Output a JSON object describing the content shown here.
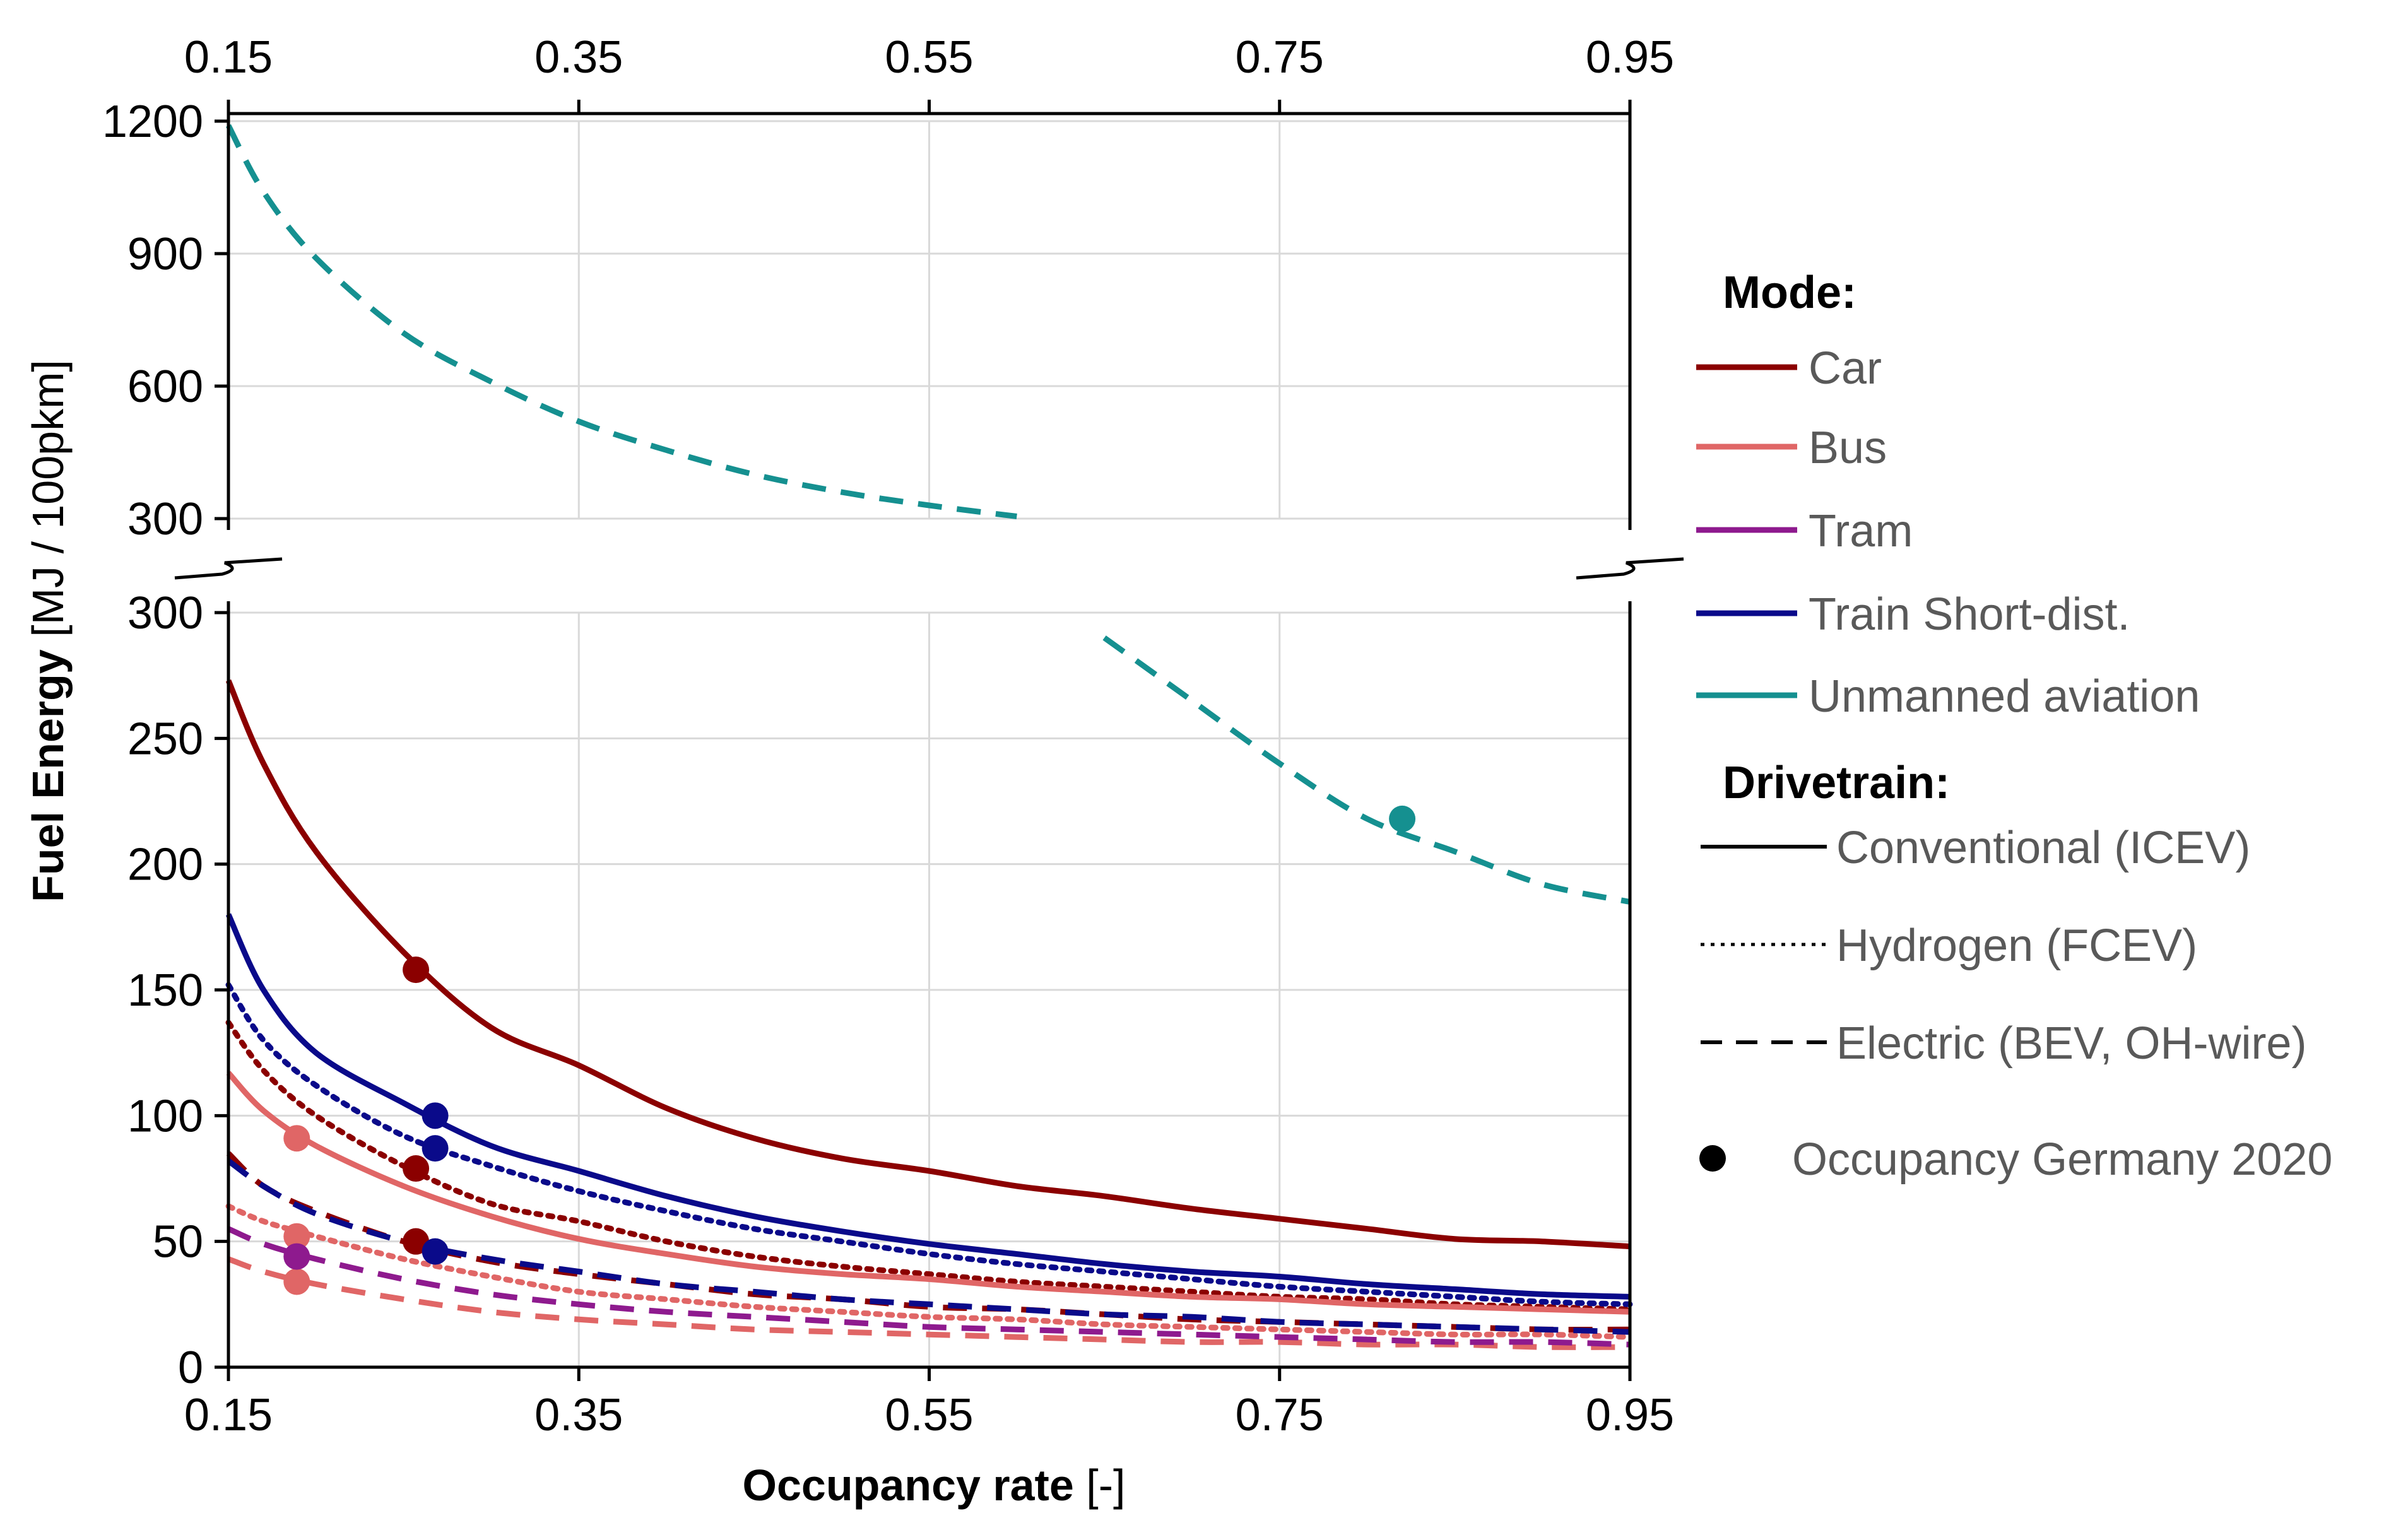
{
  "chart_data": {
    "type": "line",
    "title": "",
    "x_axis": {
      "label_bold": "Occupancy rate",
      "label_rest": " [-]",
      "range": [
        0.15,
        0.95
      ],
      "ticks": [
        "0.15",
        "0.35",
        "0.55",
        "0.75",
        "0.95"
      ],
      "tick_values": [
        0.15,
        0.35,
        0.55,
        0.75,
        0.95
      ]
    },
    "y_axis": {
      "label_bold": "Fuel Energy",
      "label_rest": " [MJ / 100pkm]",
      "lower_range": [
        0,
        300
      ],
      "lower_ticks": [
        "0",
        "50",
        "100",
        "150",
        "200",
        "250",
        "300"
      ],
      "lower_tick_values": [
        0,
        50,
        100,
        150,
        200,
        250,
        300
      ],
      "upper_range": [
        300,
        1200
      ],
      "upper_ticks": [
        "300",
        "600",
        "900",
        "1200"
      ],
      "upper_tick_values": [
        300,
        600,
        900,
        1200
      ]
    },
    "x": [
      0.15,
      0.17,
      0.2,
      0.25,
      0.3,
      0.35,
      0.4,
      0.45,
      0.5,
      0.55,
      0.6,
      0.65,
      0.7,
      0.75,
      0.8,
      0.85,
      0.9,
      0.95
    ],
    "series": [
      {
        "name": "Car",
        "mode": "Car",
        "drivetrain": "Conventional (ICEV)",
        "color": "#8B0000",
        "style": "solid",
        "values": [
          273,
          240,
          205,
          165,
          135,
          120,
          103,
          91,
          83,
          78,
          72,
          68,
          63,
          59,
          55,
          51,
          50,
          48
        ]
      },
      {
        "name": "Car",
        "mode": "Car",
        "drivetrain": "Hydrogen (FCEV)",
        "color": "#8B0000",
        "style": "dotted",
        "values": [
          137,
          118,
          100,
          80,
          65,
          58,
          50,
          44,
          40,
          37,
          34,
          32,
          30,
          28,
          27,
          25,
          24,
          23
        ]
      },
      {
        "name": "Car",
        "mode": "Car",
        "drivetrain": "Electric (BEV, OH-wire)",
        "color": "#8B0000",
        "style": "dashed",
        "values": [
          85,
          72,
          62,
          50,
          42,
          37,
          33,
          29,
          27,
          24,
          23,
          21,
          19,
          18,
          17,
          16,
          15,
          15
        ]
      },
      {
        "name": "Bus",
        "mode": "Bus",
        "drivetrain": "Conventional (ICEV)",
        "color": "#E06666",
        "style": "solid",
        "values": [
          117,
          102,
          88,
          72,
          60,
          51,
          45,
          40,
          37,
          35,
          32,
          30,
          28,
          27,
          25,
          24,
          23,
          22
        ]
      },
      {
        "name": "Bus",
        "mode": "Bus",
        "drivetrain": "Hydrogen (FCEV)",
        "color": "#E06666",
        "style": "dotted",
        "values": [
          64,
          58,
          52,
          43,
          36,
          30,
          27,
          24,
          22,
          20,
          19,
          17,
          16,
          15,
          14,
          13,
          13,
          12
        ]
      },
      {
        "name": "Bus",
        "mode": "Bus",
        "drivetrain": "Electric (BEV, OH-wire)",
        "color": "#E06666",
        "style": "dashed",
        "values": [
          43,
          38,
          33,
          27,
          22,
          19,
          17,
          15,
          14,
          13,
          12,
          11,
          10,
          10,
          9,
          9,
          8,
          8
        ]
      },
      {
        "name": "Tram",
        "mode": "Tram",
        "drivetrain": "Electric (BEV, OH-wire)",
        "color": "#8E1A8E",
        "style": "dashed",
        "values": [
          55,
          49,
          43,
          35,
          29,
          25,
          22,
          20,
          18,
          16,
          15,
          14,
          13,
          12,
          11,
          10,
          10,
          9
        ]
      },
      {
        "name": "Train Short-dist.",
        "mode": "Train Short-dist.",
        "drivetrain": "Conventional (ICEV)",
        "color": "#0A0A8A",
        "style": "solid",
        "values": [
          180,
          150,
          125,
          105,
          88,
          78,
          68,
          60,
          54,
          49,
          45,
          41,
          38,
          36,
          33,
          31,
          29,
          28
        ]
      },
      {
        "name": "Train Short-dist.",
        "mode": "Train Short-dist.",
        "drivetrain": "Hydrogen (FCEV)",
        "color": "#0A0A8A",
        "style": "dotted",
        "values": [
          152,
          130,
          112,
          92,
          80,
          70,
          62,
          55,
          50,
          45,
          41,
          38,
          35,
          32,
          30,
          28,
          26,
          25
        ]
      },
      {
        "name": "Train Short-dist.",
        "mode": "Train Short-dist.",
        "drivetrain": "Electric (BEV, OH-wire)",
        "color": "#0A0A8A",
        "style": "dashed",
        "values": [
          82,
          72,
          61,
          50,
          43,
          38,
          33,
          30,
          27,
          25,
          23,
          21,
          20,
          18,
          17,
          16,
          15,
          14
        ]
      },
      {
        "name": "Unmanned aviation",
        "mode": "Unmanned aviation",
        "drivetrain": "Electric (BEV, OH-wire)",
        "color": "#159090",
        "style": "dashed",
        "values": [
          1190,
          1040,
          890,
          720,
          610,
          520,
          455,
          400,
          360,
          330,
          305,
          290,
          265,
          240,
          218,
          205,
          192,
          185
        ]
      }
    ],
    "markers": [
      {
        "mode": "Car",
        "drivetrain": "Conventional (ICEV)",
        "x": 0.257,
        "y": 158,
        "color": "#8B0000"
      },
      {
        "mode": "Car",
        "drivetrain": "Hydrogen (FCEV)",
        "x": 0.257,
        "y": 79,
        "color": "#8B0000"
      },
      {
        "mode": "Car",
        "drivetrain": "Electric (BEV, OH-wire)",
        "x": 0.257,
        "y": 50,
        "color": "#8B0000"
      },
      {
        "mode": "Bus",
        "drivetrain": "Conventional (ICEV)",
        "x": 0.189,
        "y": 91,
        "color": "#E06666"
      },
      {
        "mode": "Bus",
        "drivetrain": "Hydrogen (FCEV)",
        "x": 0.189,
        "y": 52,
        "color": "#E06666"
      },
      {
        "mode": "Bus",
        "drivetrain": "Electric (BEV, OH-wire)",
        "x": 0.189,
        "y": 34,
        "color": "#E06666"
      },
      {
        "mode": "Tram",
        "drivetrain": "Electric (BEV, OH-wire)",
        "x": 0.189,
        "y": 44,
        "color": "#8E1A8E"
      },
      {
        "mode": "Train Short-dist.",
        "drivetrain": "Conventional (ICEV)",
        "x": 0.268,
        "y": 100,
        "color": "#0A0A8A"
      },
      {
        "mode": "Train Short-dist.",
        "drivetrain": "Hydrogen (FCEV)",
        "x": 0.268,
        "y": 87,
        "color": "#0A0A8A"
      },
      {
        "mode": "Train Short-dist.",
        "drivetrain": "Electric (BEV, OH-wire)",
        "x": 0.268,
        "y": 46,
        "color": "#0A0A8A"
      },
      {
        "mode": "Unmanned aviation",
        "drivetrain": "Electric (BEV, OH-wire)",
        "x": 0.82,
        "y": 218,
        "color": "#159090"
      }
    ],
    "legend": {
      "placement": "right",
      "mode_title": "Mode:",
      "modes": [
        {
          "label": "Car",
          "color": "#8B0000"
        },
        {
          "label": "Bus",
          "color": "#E06666"
        },
        {
          "label": "Tram",
          "color": "#8E1A8E"
        },
        {
          "label": "Train Short-dist.",
          "color": "#0A0A8A"
        },
        {
          "label": "Unmanned aviation",
          "color": "#159090"
        }
      ],
      "drivetrain_title": "Drivetrain:",
      "drivetrains": [
        {
          "label": "Conventional (ICEV)",
          "style": "solid"
        },
        {
          "label": "Hydrogen (FCEV)",
          "style": "dotted"
        },
        {
          "label": "Electric (BEV, OH-wire)",
          "style": "dashed"
        }
      ],
      "marker_label": "Occupancy Germany 2020"
    },
    "grid": true,
    "broken_y_axis": true
  }
}
